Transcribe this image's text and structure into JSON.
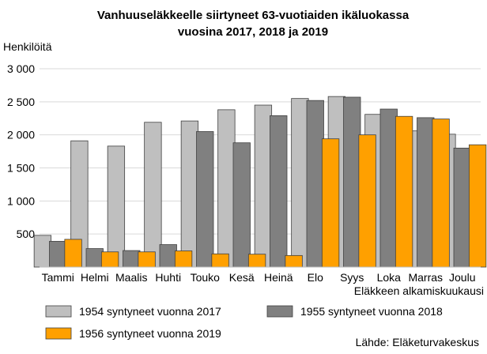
{
  "chart_data": {
    "type": "bar",
    "title_lines": [
      "Vanhuuseläkkeelle siirtyneet 63-vuotiaiden ikäluokassa",
      "vuosina 2017, 2018 ja 2019"
    ],
    "ylabel": "Henkilöitä",
    "xlabel": "Eläkkeen alkamiskuukausi",
    "categories": [
      "Tammi",
      "Helmi",
      "Maalis",
      "Huhti",
      "Touko",
      "Kesä",
      "Heinä",
      "Elo",
      "Syys",
      "Loka",
      "Marras",
      "Joulu"
    ],
    "ylim": [
      0,
      3000
    ],
    "yticks": [
      500,
      1000,
      1500,
      2000,
      2500,
      3000
    ],
    "ytick_labels": [
      "500",
      "1 000",
      "1 500",
      "2 000",
      "2 500",
      "3 000"
    ],
    "grid": true,
    "legend_position": "bottom",
    "series": [
      {
        "name": "1954 syntyneet vuonna 2017",
        "color": "#bfbfbf",
        "values": [
          480,
          1910,
          1830,
          2190,
          2210,
          2380,
          2450,
          2550,
          2580,
          2310,
          2060,
          2010
        ]
      },
      {
        "name": "1955 syntyneet vuonna 2018",
        "color": "#808080",
        "values": [
          390,
          280,
          250,
          340,
          2050,
          1880,
          2290,
          2520,
          2570,
          2390,
          2260,
          1800
        ]
      },
      {
        "name": "1956 syntyneet vuonna 2019",
        "color": "#ffa000",
        "values": [
          420,
          230,
          230,
          245,
          200,
          195,
          175,
          1940,
          2000,
          2280,
          2240,
          1850
        ]
      }
    ],
    "source": "Lähde: Eläketurvakeskus"
  }
}
